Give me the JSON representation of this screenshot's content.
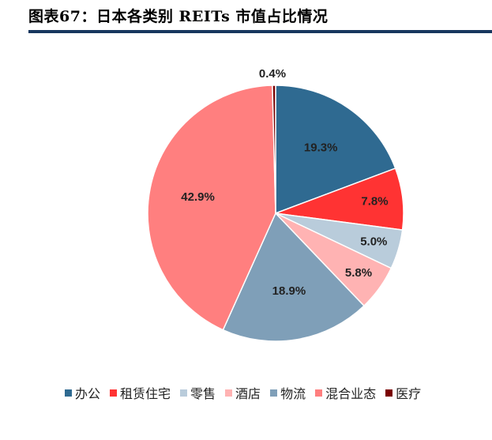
{
  "title": "图表67：日本各类别 REITs 市值占比情况",
  "chart_data": {
    "type": "pie",
    "title": "",
    "series": [
      {
        "name": "办公",
        "value": 19.3,
        "label": "19.3%",
        "color": "#2f6a91"
      },
      {
        "name": "租赁住宅",
        "value": 7.8,
        "label": "7.8%",
        "color": "#ff3333"
      },
      {
        "name": "零售",
        "value": 5.0,
        "label": "5.0%",
        "color": "#b9ccdb"
      },
      {
        "name": "酒店",
        "value": 5.8,
        "label": "5.8%",
        "color": "#ffb3b3"
      },
      {
        "name": "物流",
        "value": 18.9,
        "label": "18.9%",
        "color": "#7f9fb8"
      },
      {
        "name": "混合业态",
        "value": 42.9,
        "label": "42.9%",
        "color": "#ff7f7f"
      },
      {
        "name": "医疗",
        "value": 0.4,
        "label": "0.4%",
        "color": "#7a0000"
      }
    ],
    "legend_position": "bottom"
  }
}
